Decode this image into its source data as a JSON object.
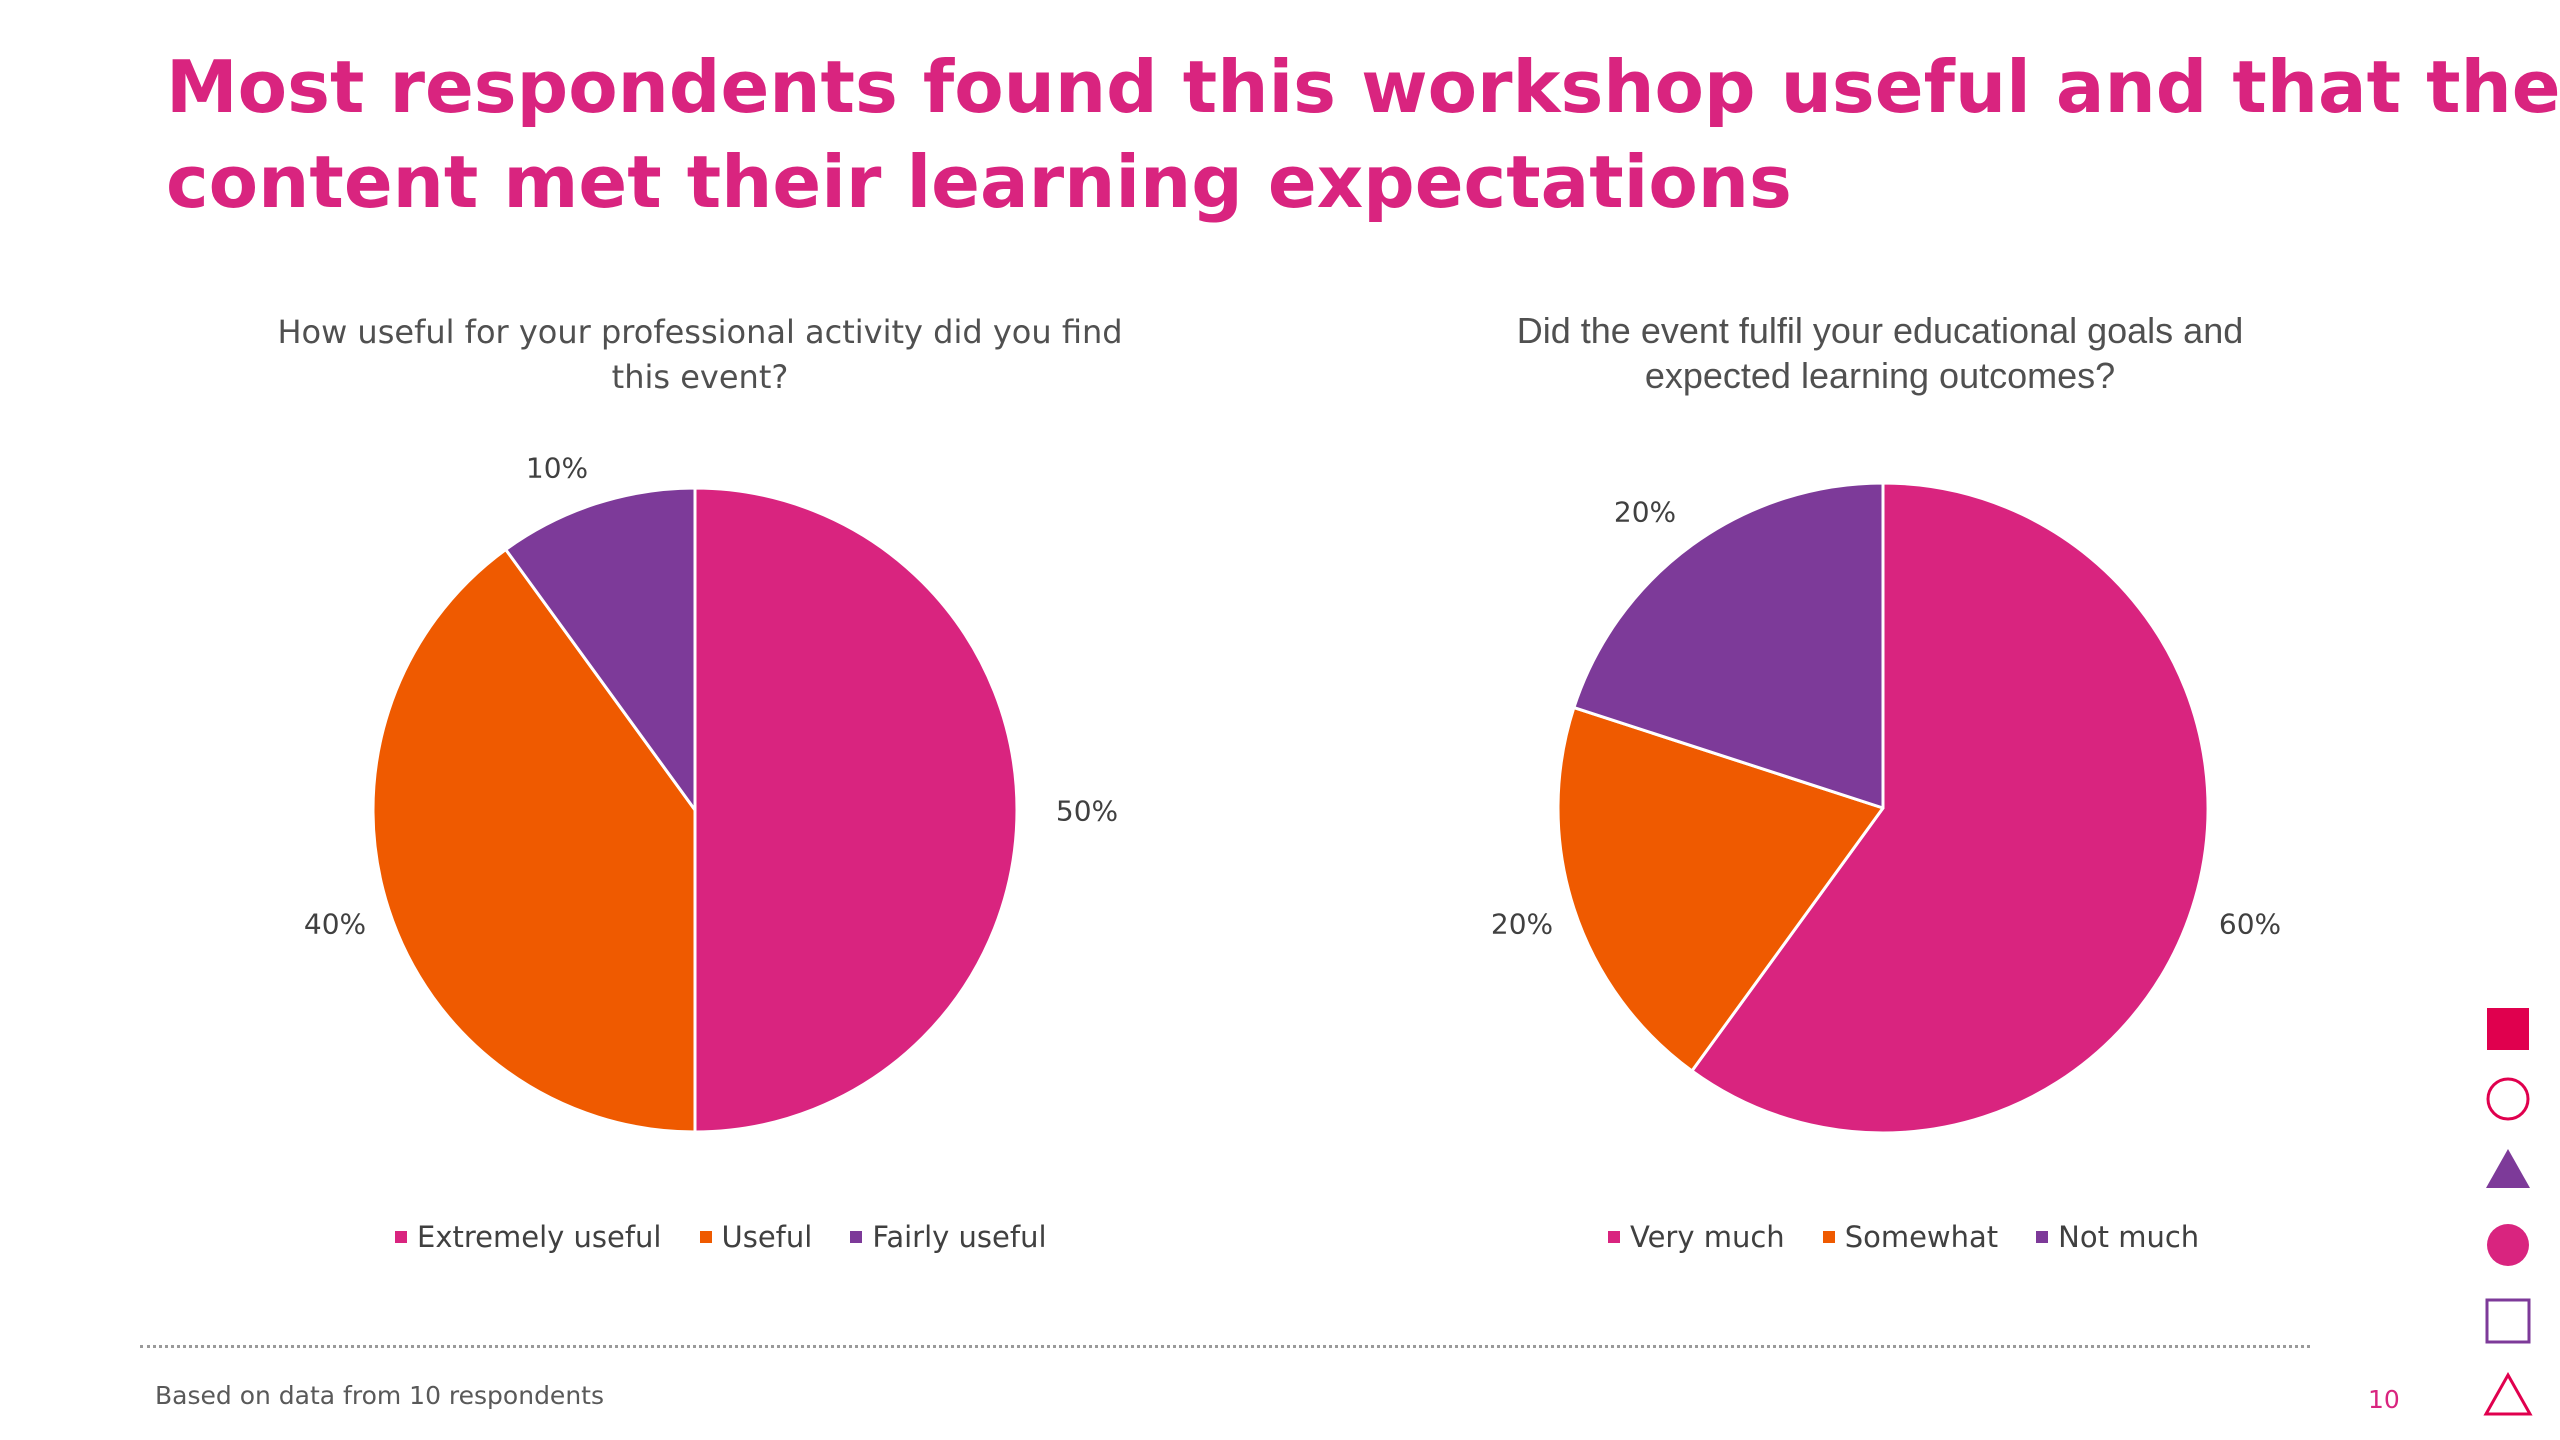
{
  "slide": {
    "headline": [
      "Most respondents found this workshop useful and that the",
      "content met their learning expectations"
    ],
    "footnote": "Based on data from 10 respondents",
    "page_number": "10"
  },
  "colors": {
    "magenta": "#d9247f",
    "orange": "#ef5a00",
    "purple": "#7d3a99",
    "crimson": "#e0004e"
  },
  "decor_icons": [
    "filled-square-icon",
    "outline-circle-icon",
    "filled-triangle-icon",
    "filled-circle-icon",
    "outline-square-icon",
    "outline-triangle-icon"
  ],
  "chart_data": [
    {
      "type": "pie",
      "title": [
        "How useful for your professional activity did you find",
        "this event?"
      ],
      "categories": [
        "Extremely useful",
        "Useful",
        "Fairly useful"
      ],
      "values": [
        50,
        40,
        10
      ],
      "data_labels": [
        "50%",
        "40%",
        "10%"
      ],
      "colors": [
        "#d9247f",
        "#ef5a00",
        "#7d3a99"
      ],
      "start_angle_deg": 0,
      "direction": "clockwise",
      "legend": "bottom"
    },
    {
      "type": "pie",
      "title": [
        "Did the event fulfil your educational goals and",
        "expected learning outcomes?"
      ],
      "categories": [
        "Very much",
        "Somewhat",
        "Not much"
      ],
      "values": [
        60,
        20,
        20
      ],
      "data_labels": [
        "60%",
        "20%",
        "20%"
      ],
      "colors": [
        "#d9247f",
        "#ef5a00",
        "#7d3a99"
      ],
      "start_angle_deg": 0,
      "direction": "clockwise",
      "legend": "bottom"
    }
  ]
}
